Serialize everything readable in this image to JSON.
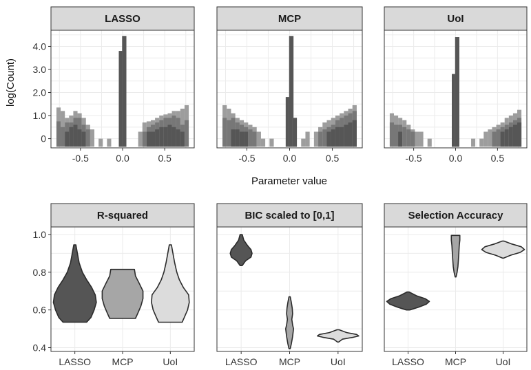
{
  "figure": {
    "xlabel_top": "Parameter value",
    "ylabel_top": "log(Count)"
  },
  "chart_data": [
    {
      "type": "histogram",
      "title": "LASSO",
      "xticks": [
        "-0.5",
        "0.0",
        "0.5"
      ],
      "yticks": [
        "0",
        "1.0",
        "2.0",
        "3.0",
        "4.0"
      ],
      "xlim": [
        -0.85,
        0.85
      ],
      "ylim": [
        -0.4,
        4.7
      ],
      "bins": [
        {
          "x": -0.76,
          "layers": [
            1.35,
            0.75,
            0.0
          ]
        },
        {
          "x": -0.71,
          "layers": [
            1.2,
            0.5,
            0.0
          ]
        },
        {
          "x": -0.66,
          "layers": [
            0.9,
            0.7,
            0.3
          ]
        },
        {
          "x": -0.61,
          "layers": [
            1.0,
            0.7,
            0.5
          ]
        },
        {
          "x": -0.56,
          "layers": [
            1.2,
            0.9,
            0.6
          ]
        },
        {
          "x": -0.51,
          "layers": [
            1.1,
            0.9,
            0.4
          ]
        },
        {
          "x": -0.46,
          "layers": [
            0.9,
            0.6,
            0.3
          ]
        },
        {
          "x": -0.41,
          "layers": [
            0.6,
            0.4,
            0.0
          ]
        },
        {
          "x": -0.36,
          "layers": [
            0.4,
            0.0,
            0.0
          ]
        },
        {
          "x": -0.26,
          "layers": [
            0.0,
            0.0,
            0.0
          ]
        },
        {
          "x": -0.16,
          "layers": [
            0.0,
            0.0,
            0.0
          ]
        },
        {
          "x": -0.02,
          "layers": [
            3.8,
            3.8,
            3.8
          ]
        },
        {
          "x": 0.02,
          "layers": [
            4.45,
            4.45,
            4.45
          ]
        },
        {
          "x": 0.21,
          "layers": [
            0.3,
            0.0,
            0.0
          ]
        },
        {
          "x": 0.26,
          "layers": [
            0.7,
            0.3,
            0.0
          ]
        },
        {
          "x": 0.31,
          "layers": [
            0.75,
            0.5,
            0.3
          ]
        },
        {
          "x": 0.36,
          "layers": [
            0.8,
            0.6,
            0.3
          ]
        },
        {
          "x": 0.41,
          "layers": [
            0.9,
            0.7,
            0.4
          ]
        },
        {
          "x": 0.46,
          "layers": [
            1.0,
            0.8,
            0.5
          ]
        },
        {
          "x": 0.51,
          "layers": [
            1.05,
            0.9,
            0.5
          ]
        },
        {
          "x": 0.56,
          "layers": [
            1.1,
            0.9,
            0.6
          ]
        },
        {
          "x": 0.61,
          "layers": [
            1.2,
            1.0,
            0.5
          ]
        },
        {
          "x": 0.66,
          "layers": [
            1.2,
            0.9,
            0.4
          ]
        },
        {
          "x": 0.71,
          "layers": [
            1.3,
            0.6,
            0.3
          ]
        },
        {
          "x": 0.76,
          "layers": [
            1.45,
            0.8,
            0.0
          ]
        }
      ]
    },
    {
      "type": "histogram",
      "title": "MCP",
      "xticks": [
        "-0.5",
        "0.0",
        "0.5"
      ],
      "xlim": [
        -0.85,
        0.85
      ],
      "ylim": [
        -0.4,
        4.7
      ],
      "bins": [
        {
          "x": -0.76,
          "layers": [
            1.45,
            0.9,
            0.0
          ]
        },
        {
          "x": -0.71,
          "layers": [
            1.3,
            0.8,
            0.0
          ]
        },
        {
          "x": -0.66,
          "layers": [
            1.1,
            0.9,
            0.4
          ]
        },
        {
          "x": -0.61,
          "layers": [
            0.9,
            0.7,
            0.4
          ]
        },
        {
          "x": -0.56,
          "layers": [
            0.8,
            0.6,
            0.3
          ]
        },
        {
          "x": -0.51,
          "layers": [
            0.7,
            0.5,
            0.3
          ]
        },
        {
          "x": -0.46,
          "layers": [
            0.6,
            0.4,
            0.0
          ]
        },
        {
          "x": -0.41,
          "layers": [
            0.5,
            0.3,
            0.0
          ]
        },
        {
          "x": -0.36,
          "layers": [
            0.3,
            0.0,
            0.0
          ]
        },
        {
          "x": -0.31,
          "layers": [
            0.0,
            0.0,
            0.0
          ]
        },
        {
          "x": -0.21,
          "layers": [
            0.0,
            0.0,
            0.0
          ]
        },
        {
          "x": -0.02,
          "layers": [
            1.8,
            1.8,
            1.8
          ]
        },
        {
          "x": 0.02,
          "layers": [
            4.45,
            4.45,
            4.45
          ]
        },
        {
          "x": 0.06,
          "layers": [
            0.9,
            0.9,
            0.9
          ]
        },
        {
          "x": 0.16,
          "layers": [
            0.0,
            0.0,
            0.0
          ]
        },
        {
          "x": 0.21,
          "layers": [
            0.3,
            0.0,
            0.0
          ]
        },
        {
          "x": 0.31,
          "layers": [
            0.3,
            0.0,
            0.0
          ]
        },
        {
          "x": 0.36,
          "layers": [
            0.5,
            0.3,
            0.0
          ]
        },
        {
          "x": 0.41,
          "layers": [
            0.7,
            0.4,
            0.0
          ]
        },
        {
          "x": 0.46,
          "layers": [
            0.8,
            0.5,
            0.3
          ]
        },
        {
          "x": 0.51,
          "layers": [
            0.9,
            0.6,
            0.4
          ]
        },
        {
          "x": 0.56,
          "layers": [
            1.0,
            0.8,
            0.5
          ]
        },
        {
          "x": 0.61,
          "layers": [
            1.1,
            0.9,
            0.5
          ]
        },
        {
          "x": 0.66,
          "layers": [
            1.2,
            1.0,
            0.6
          ]
        },
        {
          "x": 0.71,
          "layers": [
            1.3,
            1.1,
            0.7
          ]
        },
        {
          "x": 0.76,
          "layers": [
            1.45,
            1.2,
            0.8
          ]
        }
      ]
    },
    {
      "type": "histogram",
      "title": "UoI",
      "xticks": [
        "-0.5",
        "0.0",
        "0.5"
      ],
      "xlim": [
        -0.85,
        0.85
      ],
      "ylim": [
        -0.4,
        4.7
      ],
      "bins": [
        {
          "x": -0.76,
          "layers": [
            1.1,
            0.7,
            0.0
          ]
        },
        {
          "x": -0.71,
          "layers": [
            1.0,
            0.6,
            0.0
          ]
        },
        {
          "x": -0.66,
          "layers": [
            0.9,
            0.6,
            0.3
          ]
        },
        {
          "x": -0.61,
          "layers": [
            0.8,
            0.5,
            0.0
          ]
        },
        {
          "x": -0.56,
          "layers": [
            0.6,
            0.4,
            0.0
          ]
        },
        {
          "x": -0.51,
          "layers": [
            0.4,
            0.3,
            0.0
          ]
        },
        {
          "x": -0.46,
          "layers": [
            0.3,
            0.0,
            0.0
          ]
        },
        {
          "x": -0.41,
          "layers": [
            0.3,
            0.0,
            0.0
          ]
        },
        {
          "x": -0.31,
          "layers": [
            0.0,
            0.0,
            0.0
          ]
        },
        {
          "x": -0.02,
          "layers": [
            2.8,
            2.8,
            2.8
          ]
        },
        {
          "x": 0.02,
          "layers": [
            4.4,
            4.4,
            4.4
          ]
        },
        {
          "x": 0.21,
          "layers": [
            0.0,
            0.0,
            0.0
          ]
        },
        {
          "x": 0.31,
          "layers": [
            0.0,
            0.0,
            0.0
          ]
        },
        {
          "x": 0.36,
          "layers": [
            0.3,
            0.0,
            0.0
          ]
        },
        {
          "x": 0.41,
          "layers": [
            0.4,
            0.0,
            0.0
          ]
        },
        {
          "x": 0.46,
          "layers": [
            0.5,
            0.3,
            0.0
          ]
        },
        {
          "x": 0.51,
          "layers": [
            0.6,
            0.4,
            0.0
          ]
        },
        {
          "x": 0.56,
          "layers": [
            0.7,
            0.5,
            0.3
          ]
        },
        {
          "x": 0.61,
          "layers": [
            0.9,
            0.6,
            0.4
          ]
        },
        {
          "x": 0.66,
          "layers": [
            1.0,
            0.7,
            0.5
          ]
        },
        {
          "x": 0.71,
          "layers": [
            1.1,
            0.8,
            0.6
          ]
        },
        {
          "x": 0.76,
          "layers": [
            1.25,
            0.9,
            0.7
          ]
        }
      ]
    },
    {
      "type": "violin",
      "title": "R-squared",
      "categories": [
        "LASSO",
        "MCP",
        "UoI"
      ],
      "yticks": [
        "0.4",
        "0.6",
        "0.8",
        "1.0"
      ],
      "ylim": [
        0.38,
        1.04
      ],
      "colors": [
        "#555555",
        "#a6a6a6",
        "#dcdcdc"
      ],
      "violins": [
        {
          "min": 0.535,
          "max": 0.945,
          "profile": [
            [
              0.535,
              0.55
            ],
            [
              0.56,
              0.75
            ],
            [
              0.6,
              0.9
            ],
            [
              0.64,
              1.0
            ],
            [
              0.68,
              0.95
            ],
            [
              0.72,
              0.78
            ],
            [
              0.76,
              0.55
            ],
            [
              0.8,
              0.35
            ],
            [
              0.85,
              0.2
            ],
            [
              0.9,
              0.12
            ],
            [
              0.945,
              0.05
            ]
          ]
        },
        {
          "min": 0.555,
          "max": 0.815,
          "profile": [
            [
              0.555,
              0.6
            ],
            [
              0.58,
              0.7
            ],
            [
              0.62,
              0.85
            ],
            [
              0.66,
              0.95
            ],
            [
              0.7,
              0.95
            ],
            [
              0.74,
              0.78
            ],
            [
              0.78,
              0.6
            ],
            [
              0.815,
              0.55
            ]
          ]
        },
        {
          "min": 0.535,
          "max": 0.945,
          "profile": [
            [
              0.535,
              0.55
            ],
            [
              0.56,
              0.65
            ],
            [
              0.6,
              0.8
            ],
            [
              0.64,
              0.88
            ],
            [
              0.68,
              0.85
            ],
            [
              0.72,
              0.6
            ],
            [
              0.76,
              0.42
            ],
            [
              0.8,
              0.3
            ],
            [
              0.85,
              0.2
            ],
            [
              0.9,
              0.12
            ],
            [
              0.945,
              0.05
            ]
          ]
        }
      ]
    },
    {
      "type": "violin",
      "title": "BIC scaled to [0,1]",
      "categories": [
        "LASSO",
        "MCP",
        "UoI"
      ],
      "ylim": [
        0.38,
        1.04
      ],
      "colors": [
        "#555555",
        "#a6a6a6",
        "#dcdcdc"
      ],
      "violins": [
        {
          "min": 0.835,
          "max": 1.0,
          "profile": [
            [
              0.835,
              0.05
            ],
            [
              0.86,
              0.2
            ],
            [
              0.88,
              0.45
            ],
            [
              0.9,
              0.5
            ],
            [
              0.92,
              0.45
            ],
            [
              0.94,
              0.3
            ],
            [
              0.97,
              0.12
            ],
            [
              1.0,
              0.05
            ]
          ]
        },
        {
          "min": 0.395,
          "max": 0.67,
          "profile": [
            [
              0.395,
              0.03
            ],
            [
              0.42,
              0.08
            ],
            [
              0.46,
              0.14
            ],
            [
              0.5,
              0.18
            ],
            [
              0.52,
              0.14
            ],
            [
              0.55,
              0.1
            ],
            [
              0.58,
              0.14
            ],
            [
              0.61,
              0.12
            ],
            [
              0.64,
              0.08
            ],
            [
              0.67,
              0.03
            ]
          ]
        },
        {
          "min": 0.43,
          "max": 0.495,
          "profile": [
            [
              0.43,
              0.03
            ],
            [
              0.445,
              0.2
            ],
            [
              0.455,
              0.7
            ],
            [
              0.462,
              0.95
            ],
            [
              0.47,
              0.85
            ],
            [
              0.48,
              0.4
            ],
            [
              0.495,
              0.05
            ]
          ]
        }
      ]
    },
    {
      "type": "violin",
      "title": "Selection Accuracy",
      "categories": [
        "LASSO",
        "MCP",
        "UoI"
      ],
      "ylim": [
        0.38,
        1.04
      ],
      "colors": [
        "#555555",
        "#a6a6a6",
        "#dcdcdc"
      ],
      "violins": [
        {
          "min": 0.6,
          "max": 0.695,
          "profile": [
            [
              0.6,
              0.08
            ],
            [
              0.615,
              0.5
            ],
            [
              0.63,
              0.85
            ],
            [
              0.645,
              1.0
            ],
            [
              0.66,
              0.8
            ],
            [
              0.675,
              0.4
            ],
            [
              0.695,
              0.05
            ]
          ]
        },
        {
          "min": 0.775,
          "max": 0.995,
          "profile": [
            [
              0.775,
              0.02
            ],
            [
              0.8,
              0.07
            ],
            [
              0.83,
              0.11
            ],
            [
              0.86,
              0.13
            ],
            [
              0.9,
              0.15
            ],
            [
              0.94,
              0.17
            ],
            [
              0.97,
              0.2
            ],
            [
              0.995,
              0.2
            ]
          ]
        },
        {
          "min": 0.875,
          "max": 0.965,
          "profile": [
            [
              0.875,
              0.03
            ],
            [
              0.89,
              0.35
            ],
            [
              0.905,
              0.8
            ],
            [
              0.92,
              1.0
            ],
            [
              0.935,
              0.85
            ],
            [
              0.95,
              0.4
            ],
            [
              0.965,
              0.05
            ]
          ]
        }
      ]
    }
  ]
}
